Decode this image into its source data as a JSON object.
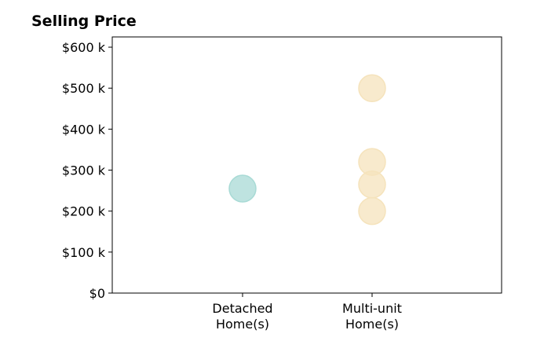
{
  "chart_data": {
    "type": "scatter",
    "title": "Selling Price",
    "categories": [
      "Detached\nHome(s)",
      "Multi-unit\nHome(s)"
    ],
    "ylim": [
      0,
      625000
    ],
    "yticks": [
      0,
      100000,
      200000,
      300000,
      400000,
      500000,
      600000
    ],
    "ytick_labels": [
      "$0",
      "$100 k",
      "$200 k",
      "$300 k",
      "$400 k",
      "$500 k",
      "$600 k"
    ],
    "grid": false,
    "series": [
      {
        "category": 0,
        "color": "#a8dad5",
        "values": [
          255000
        ]
      },
      {
        "category": 1,
        "color": "#f5e3bc",
        "values": [
          500000,
          320000,
          265000,
          200000
        ]
      }
    ]
  }
}
